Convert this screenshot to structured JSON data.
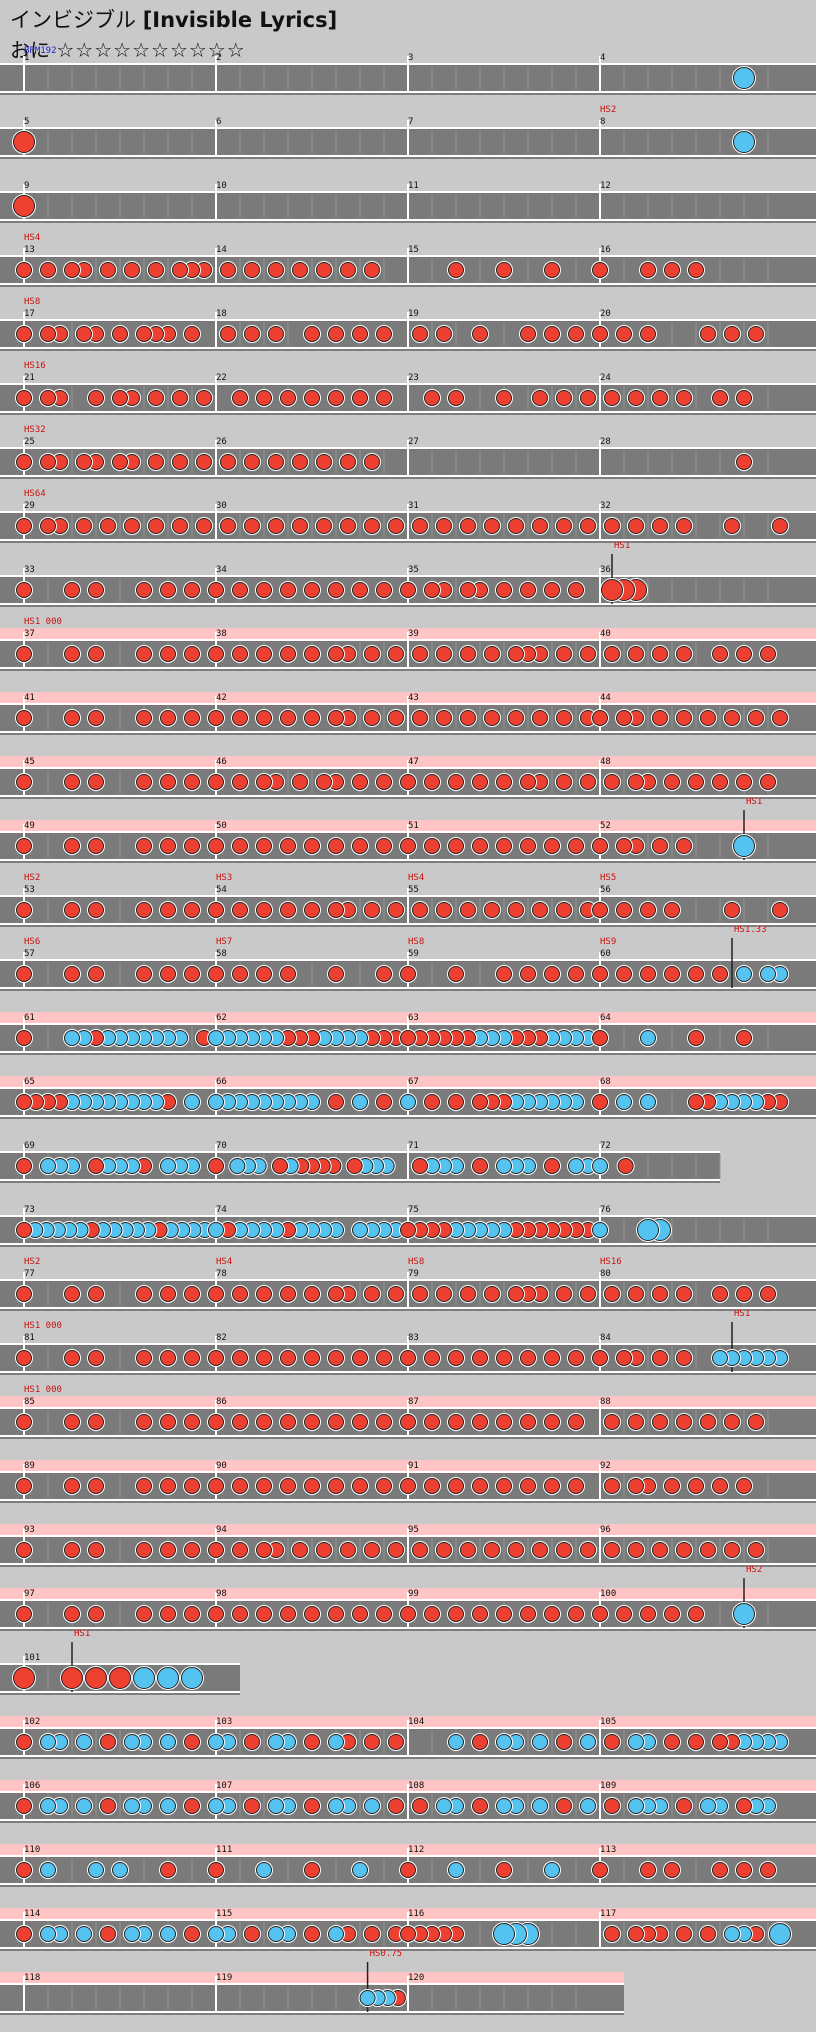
{
  "song": {
    "title_jp": "インビジブル",
    "title_en": "[Invisible Lyrics]"
  },
  "course": {
    "name": "おに",
    "stars": "☆☆☆☆☆☆☆☆☆☆"
  },
  "bpm_label": "BPM192",
  "colors": {
    "don": "#ee4030",
    "ka": "#55c3f0",
    "lane": "#7a7a7a",
    "lane_dark": "#555555",
    "gogo_band": "#ffc4c4",
    "barline": "#ffffff",
    "hs_text": "#cc1111",
    "bpm_text": "#2222cc",
    "bg": "#c9c9c9"
  },
  "chart_data": {
    "type": "table",
    "description": "Taiko no Tatsujin notechart. Rows of 4 measures each; values per measure are the note pattern (d=don/red, k=ka/blue, D=big don, K=big ka, 0=rest).",
    "rows": [
      {
        "measures": [
          1,
          2,
          3,
          4
        ],
        "gogo": false,
        "labels": [],
        "notes": [
          "0000",
          "0000",
          "0000",
          "000K"
        ]
      },
      {
        "measures": [
          5,
          6,
          7,
          8
        ],
        "gogo": false,
        "labels": [
          {
            "measure": 8,
            "pos": 0,
            "text": "HS2"
          }
        ],
        "notes": [
          "D000",
          "0000",
          "0000",
          "000K"
        ]
      },
      {
        "measures": [
          9,
          10,
          11,
          12
        ],
        "gogo": false,
        "labels": [],
        "notes": [
          "D000",
          "0000",
          "0000",
          "0000"
        ]
      },
      {
        "measures": [
          13,
          14,
          15,
          16
        ],
        "gogo": false,
        "labels": [
          {
            "measure": 13,
            "pos": 0,
            "text": "HS4"
          }
        ],
        "notes": [
          "d0d0dd0d0d0d0ddd",
          "0d0d0d0d0d0d0d00",
          "0000d000d000d000",
          "d000d0d0d0000000"
        ]
      },
      {
        "measures": [
          17,
          18,
          19,
          20
        ],
        "gogo": false,
        "labels": [
          {
            "measure": 17,
            "pos": 0,
            "text": "HS8"
          }
        ],
        "notes": [
          "d0dd0dd0d0ddd0d0",
          "0d0d0d00d0d0d0d0",
          "0d0d00d000d0d0d0",
          "d0d0d0000d0d0d00"
        ]
      },
      {
        "measures": [
          21,
          22,
          23,
          24
        ],
        "gogo": false,
        "labels": [
          {
            "measure": 21,
            "pos": 0,
            "text": "HS16"
          }
        ],
        "notes": [
          "d0dd00d0dd0d0d0d",
          "00d0d0d0d0d0d0d0",
          "00d0d000d00d0d0d",
          "0d0d0d0d00d0d000"
        ]
      },
      {
        "measures": [
          25,
          26,
          27,
          28
        ],
        "gogo": false,
        "labels": [
          {
            "measure": 25,
            "pos": 0,
            "text": "HS32"
          }
        ],
        "notes": [
          "d0dd0dd0dd0d0d0d",
          "0d0d0d0d0d0d0d00",
          "0000000000000000",
          "000000000000d000"
        ]
      },
      {
        "measures": [
          29,
          30,
          31,
          32
        ],
        "gogo": false,
        "labels": [
          {
            "measure": 29,
            "pos": 0,
            "text": "HS64"
          }
        ],
        "notes": [
          "d0dd0d0d0d0d0d0d",
          "0d0d0d0d0d0d0d0d",
          "0d0d0d0d0d0d0d0d",
          "0d0d0d0d000d000d"
        ]
      },
      {
        "measures": [
          33,
          34,
          35,
          36
        ],
        "gogo": false,
        "labels": [
          {
            "measure": 36,
            "pos": 1,
            "text": "HS1"
          }
        ],
        "notes": [
          "d000d0d000d0d0d0",
          "d0d0d0d0d0d0d0d0",
          "d0dd0dd0d0d0d0d0",
          "0DDD000000000000"
        ]
      },
      {
        "measures": [
          37,
          38,
          39,
          40
        ],
        "gogo": true,
        "labels": [
          {
            "measure": 37,
            "pos": 0,
            "text": "HS1 000"
          }
        ],
        "notes": [
          "d000d0d000d0d0d0",
          "d0d0d0d0d0dd0d0d",
          "0d0d0d0d0ddd0d0d",
          "0d0d0d0d00d0d0d0"
        ]
      },
      {
        "measures": [
          41,
          42,
          43,
          44
        ],
        "gogo": true,
        "labels": [],
        "notes": [
          "d000d0d000d0d0d0",
          "d0d0d0d0d0dd0d0d",
          "0d0d0d0d0d0d0d0d",
          "d0dd0d0d0d0d0d0d"
        ]
      },
      {
        "measures": [
          45,
          46,
          47,
          48
        ],
        "gogo": true,
        "labels": [],
        "notes": [
          "d000d0d000d0d0d0",
          "d0d0dd0d0dd0d0d0",
          "d0d0d0d0d0dd0d0d",
          "0d0dd0d0d0d0d0d0"
        ]
      },
      {
        "measures": [
          49,
          50,
          51,
          52
        ],
        "gogo": true,
        "labels": [
          {
            "measure": 52,
            "pos": 12,
            "text": "HS1"
          }
        ],
        "notes": [
          "d000d0d000d0d0d0",
          "d0d0d0d0d0d0d0d0",
          "d0d0d0d0d0d0d0d0",
          "d0dd0d0d0000K000"
        ]
      },
      {
        "measures": [
          53,
          54,
          55,
          56
        ],
        "gogo": false,
        "labels": [
          {
            "measure": 53,
            "pos": 0,
            "text": "HS2"
          },
          {
            "measure": 54,
            "pos": 0,
            "text": "HS3"
          },
          {
            "measure": 55,
            "pos": 0,
            "text": "HS4"
          },
          {
            "measure": 56,
            "pos": 0,
            "text": "HS5"
          }
        ],
        "notes": [
          "d000d0d000d0d0d0",
          "d0d0d0d0d0dd0d0d",
          "0d0d0d0d0d0d0d0d",
          "d0d0d0d0000d000d"
        ]
      },
      {
        "measures": [
          57,
          58,
          59,
          60
        ],
        "gogo": false,
        "labels": [
          {
            "measure": 57,
            "pos": 0,
            "text": "HS6"
          },
          {
            "measure": 58,
            "pos": 0,
            "text": "HS7"
          },
          {
            "measure": 59,
            "pos": 0,
            "text": "HS8"
          },
          {
            "measure": 60,
            "pos": 0,
            "text": "HS9"
          },
          {
            "measure": 60,
            "pos": 11,
            "text": "HS1.33"
          }
        ],
        "notes": [
          "d000d0d000d0d0d0",
          "d0d0d0d000d000d0",
          "d000d000d0d0d0d0",
          "d0d0d0d0d0d0k0kk"
        ]
      },
      {
        "measures": [
          61,
          62,
          63,
          64
        ],
        "gogo": true,
        "labels": [],
        "notes": [
          "d000kkdkkkkkkk0d",
          "kkkkkkdddkkkkddd",
          "ddddddkkkdddkkkk",
          "d000k000d000d000"
        ]
      },
      {
        "measures": [
          65,
          66,
          67,
          68
        ],
        "gogo": true,
        "labels": [],
        "notes": [
          "ddddkkkkkkkkd0k0",
          "kkkkkkkkk0d0k0d0",
          "k0d0d0dddkkkkkk0",
          "d0k0k000ddkkkkdd"
        ]
      },
      {
        "measures": [
          69,
          70,
          71,
          72
        ],
        "gogo": false,
        "labels": [],
        "notes": [
          "d0kkk0dkkkd0kkk0",
          "d0kkk0dkdddd0dkkk0",
          "0dkkk0d0kkk0d0kk",
          "k0d000000000000"
        ]
      },
      {
        "measures": [
          73,
          74,
          75,
          76
        ],
        "gogo": false,
        "labels": [],
        "notes": [
          "dkkkkkdkkkkkdkkkk",
          "kdkkkkdkkkk0kkkk",
          "ddddkkkkkddddddd",
          "k000KK0000000000"
        ]
      },
      {
        "measures": [
          77,
          78,
          79,
          80
        ],
        "gogo": false,
        "labels": [
          {
            "measure": 77,
            "pos": 0,
            "text": "HS2"
          },
          {
            "measure": 78,
            "pos": 0,
            "text": "HS4"
          },
          {
            "measure": 79,
            "pos": 0,
            "text": "HS8"
          },
          {
            "measure": 80,
            "pos": 0,
            "text": "HS16"
          }
        ],
        "notes": [
          "d000d0d000d0d0d0",
          "d0d0d0d0d0dd0d0d",
          "0d0d0d0d0ddd0d0d",
          "0d0d0d0d00d0d0d0"
        ]
      },
      {
        "measures": [
          81,
          82,
          83,
          84
        ],
        "gogo": false,
        "labels": [
          {
            "measure": 81,
            "pos": 0,
            "text": "HS1 000"
          },
          {
            "measure": 84,
            "pos": 11,
            "text": "HS1"
          }
        ],
        "notes": [
          "d000d0d000d0d0d0",
          "d0d0d0d0d0d0d0d0",
          "d0d0d0d0d0d0d0d0",
          "d0dd0d0d00kkkkkk"
        ]
      },
      {
        "measures": [
          85,
          86,
          87,
          88
        ],
        "gogo": true,
        "labels": [
          {
            "measure": 85,
            "pos": 0,
            "text": "HS1 000"
          }
        ],
        "notes": [
          "d000d0d000d0d0d0",
          "d0d0d0d0d0d0d0d0",
          "d0d0d0d0d0d0d0d0",
          "0d0d0d0d0d0d0d00"
        ]
      },
      {
        "measures": [
          89,
          90,
          91,
          92
        ],
        "gogo": true,
        "labels": [],
        "notes": [
          "d000d0d000d0d0d0",
          "d0d0d0d0d0d0d0d0",
          "d0d0d0d0d0d0d0d0",
          "0d0dd0d0d0d0d000"
        ]
      },
      {
        "measures": [
          93,
          94,
          95,
          96
        ],
        "gogo": true,
        "labels": [],
        "notes": [
          "d000d0d000d0d0d0",
          "d0d0dd0d0d0d0d0d",
          "0d0d0d0d0d0d0d0d",
          "0d0d0d0d0d0d0d00"
        ]
      },
      {
        "measures": [
          97,
          98,
          99,
          100
        ],
        "gogo": true,
        "labels": [
          {
            "measure": 100,
            "pos": 12,
            "text": "HS2"
          }
        ],
        "notes": [
          "d000d0d000d0d0d0",
          "d0d0d0d0d0d0d0d0",
          "d0d0d0d0d0d0d0d0",
          "d0d0d0d0d000K000"
        ]
      },
      {
        "measures": [
          101
        ],
        "gogo": false,
        "labels": [
          {
            "measure": 101,
            "pos": 2,
            "text": "HS1"
          }
        ],
        "notes": [
          "D0DDDKKK"
        ]
      },
      {
        "measures": [
          102,
          103,
          104,
          105
        ],
        "gogo": true,
        "labels": [],
        "notes": [
          "d0kk0k0d0kk0k0d0",
          "kk0d0kk0d0kd0d0d",
          "0000k0d0kk0k0d0k",
          "0d0kk0d0d0ddkkkk"
        ]
      },
      {
        "measures": [
          106,
          107,
          108,
          109
        ],
        "gogo": true,
        "labels": [],
        "notes": [
          "d0kk0k0d0kk0k0d0",
          "kk0d0kk0d0kk0k0d",
          "0d0kk0d0kk0k0d0k",
          "0d0kkk0d0kk0dkk0"
        ]
      },
      {
        "measures": [
          110,
          111,
          112,
          113
        ],
        "gogo": true,
        "labels": [],
        "notes": [
          "d0k000k0k000d000",
          "d000k000d000k000",
          "d000k000d000k000",
          "d000d0d000d0d0d0"
        ]
      },
      {
        "measures": [
          114,
          115,
          116,
          117
        ],
        "gogo": true,
        "labels": [],
        "notes": [
          "d0kk0k0d0kk0k0d0",
          "kk0d0kk0d0kd0d0d",
          "ddddd000KKK00000",
          "0d0ddd0d0d0kkd0K"
        ]
      },
      {
        "measures": [
          118,
          119,
          120
        ],
        "gogo": true,
        "labels": [
          {
            "measure": 119,
            "pos": 15,
            "text": "HS0.75"
          }
        ],
        "notes": [
          "0000000000000000",
          "000000000000000kkkd",
          "0000"
        ]
      }
    ]
  }
}
